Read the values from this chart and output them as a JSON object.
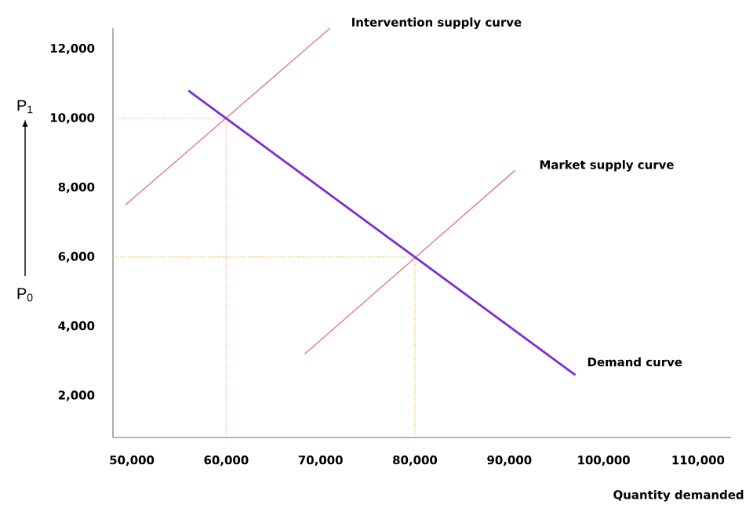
{
  "chart_data": {
    "type": "line",
    "xlabel": "Quantity demanded",
    "annotations": [
      "P$_{1}$",
      "P$_{0}$"
    ],
    "xlim": [
      48000,
      113500
    ],
    "ylim": [
      800,
      12600
    ],
    "xticks": [
      {
        "value": 50000,
        "label": "50,000"
      },
      {
        "value": 60000,
        "label": "60,000"
      },
      {
        "value": 70000,
        "label": "70,000"
      },
      {
        "value": 80000,
        "label": "80,000"
      },
      {
        "value": 90000,
        "label": "90,000"
      },
      {
        "value": 100000,
        "label": "100,000"
      },
      {
        "value": 110000,
        "label": "110,000"
      }
    ],
    "yticks": [
      {
        "value": 2000,
        "label": "2,000"
      },
      {
        "value": 4000,
        "label": "4,000"
      },
      {
        "value": 6000,
        "label": "6,000"
      },
      {
        "value": 8000,
        "label": "8,000"
      },
      {
        "value": 10000,
        "label": "10,000"
      },
      {
        "value": 12000,
        "label": "12,000"
      }
    ],
    "series": [
      {
        "color": "#e8a0a8",
        "line_style": "dotted",
        "x": [
          48000,
          60000
        ],
        "values": [
          10000,
          10000
        ]
      },
      {
        "color": "#e8a0a8",
        "line_style": "dotted",
        "x": [
          60000,
          60000
        ],
        "values": [
          800,
          10000
        ]
      },
      {
        "color": "#f0b030",
        "line_style": "dotted",
        "x": [
          48000,
          80000
        ],
        "values": [
          6000,
          6000
        ]
      },
      {
        "color": "#f0b030",
        "line_style": "dotted",
        "x": [
          80000,
          80000
        ],
        "values": [
          800,
          6000
        ]
      },
      {
        "name": "Intervention supply curve",
        "color": "#e07888",
        "line_style": "solid",
        "x": [
          49300,
          71000
        ],
        "values": [
          7500,
          12600
        ]
      },
      {
        "name": "Market supply curve",
        "color": "#e07888",
        "line_style": "solid",
        "x": [
          68300,
          90600
        ],
        "values": [
          3200,
          8500
        ]
      },
      {
        "name": "Demand curve",
        "color": "#7b2fd0",
        "line_style": "solid",
        "x": [
          56000,
          97000
        ],
        "values": [
          10800,
          2600
        ]
      }
    ]
  }
}
